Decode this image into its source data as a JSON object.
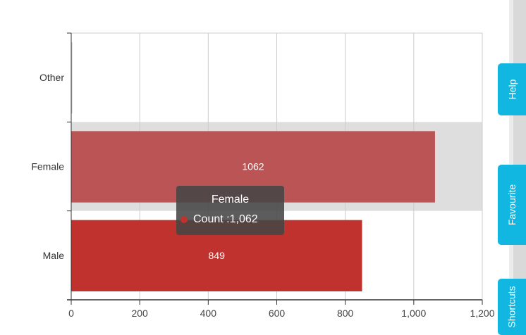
{
  "chart_data": {
    "type": "bar",
    "orientation": "horizontal",
    "categories": [
      "Other",
      "Female",
      "Male"
    ],
    "values": [
      0,
      1062,
      849
    ],
    "value_labels": [
      "",
      "1062",
      "849"
    ],
    "x_ticks": [
      "0",
      "200",
      "400",
      "600",
      "800",
      "1,000",
      "1,200"
    ],
    "xlim": [
      0,
      1200
    ],
    "grid": "vertical",
    "highlighted_category": "Female",
    "colors": {
      "Other": "#c9c9c9",
      "Female": "#bb5454",
      "Male": "#c0322d",
      "highlight_band": "#dedede"
    }
  },
  "tooltip": {
    "title": "Female",
    "series_name": "Count : ",
    "value": "1,062",
    "marker_color": "#c0322d"
  },
  "side_tabs": {
    "help": "Help",
    "favourite": "Favourite",
    "shortcuts": "Shortcuts"
  }
}
